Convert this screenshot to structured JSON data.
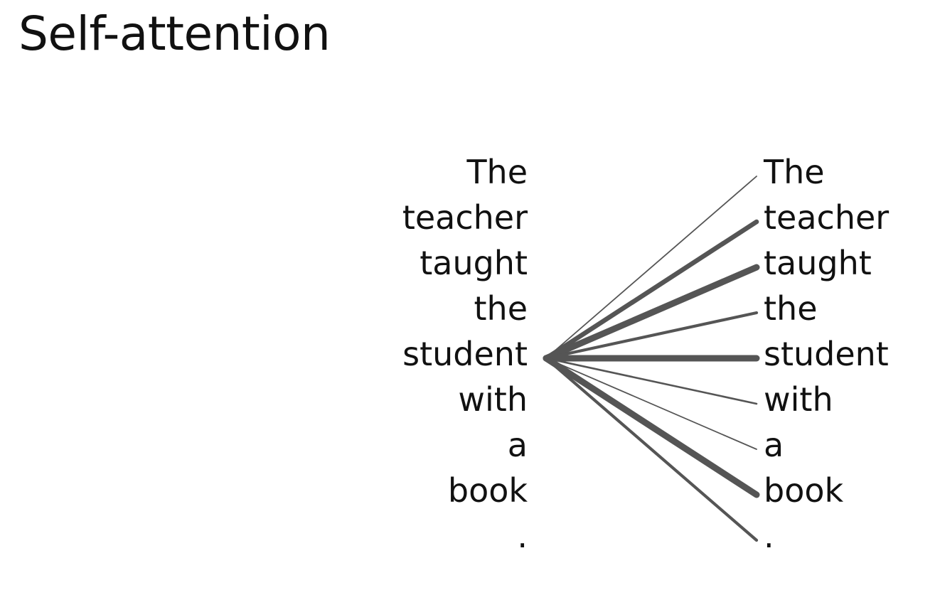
{
  "title": "Self-attention",
  "source_tokens": [
    "The",
    "teacher",
    "taught",
    "the",
    "student",
    "with",
    "a",
    "book",
    "."
  ],
  "target_tokens": [
    "The",
    "teacher",
    "taught",
    "the",
    "student",
    "with",
    "a",
    "book",
    "."
  ],
  "focus_token_index": 4,
  "attention_weights": [
    0.1,
    0.7,
    1.0,
    0.4,
    1.0,
    0.2,
    0.1,
    1.0,
    0.4
  ],
  "line_color": "#555555"
}
